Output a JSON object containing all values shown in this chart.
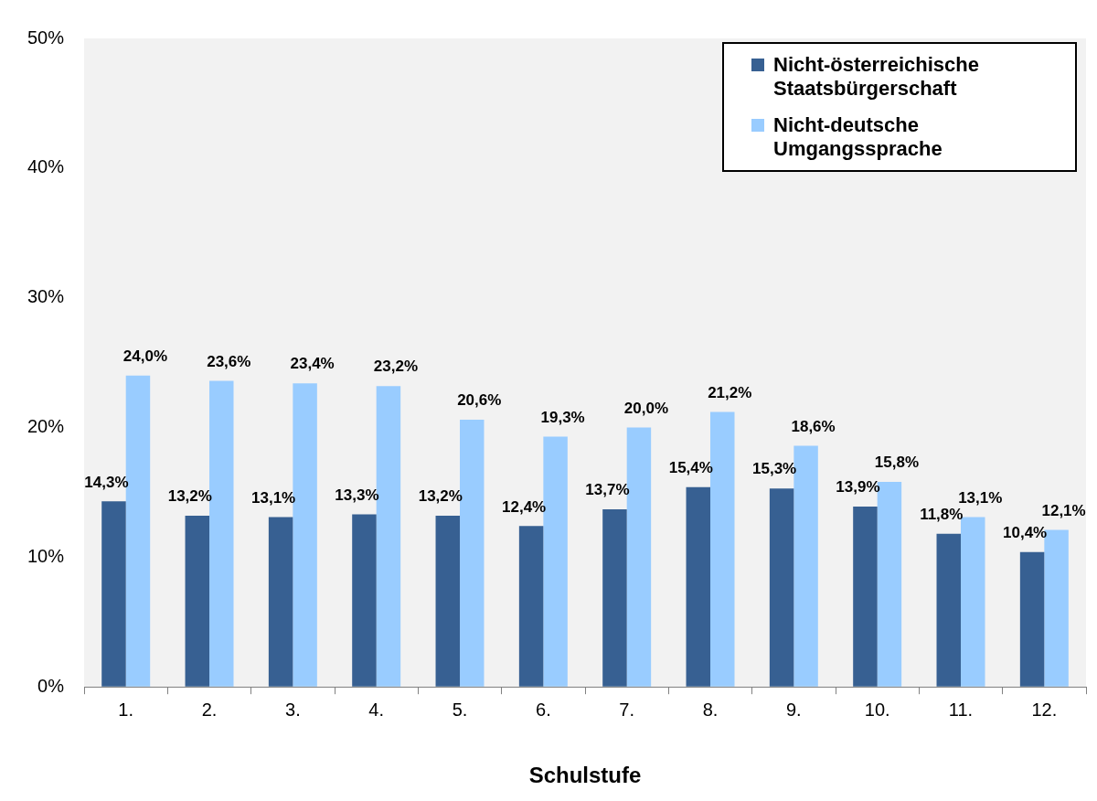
{
  "chart_data": {
    "type": "bar",
    "xlabel": "Schulstufe",
    "categories": [
      "1.",
      "2.",
      "3.",
      "4.",
      "5.",
      "6.",
      "7.",
      "8.",
      "9.",
      "10.",
      "11.",
      "12."
    ],
    "series": [
      {
        "name": "Nicht-österreichische Staatsbürgerschaft",
        "color": "#376092",
        "values": [
          14.3,
          13.2,
          13.1,
          13.3,
          13.2,
          12.4,
          13.7,
          15.4,
          15.3,
          13.9,
          11.8,
          10.4
        ],
        "value_labels": [
          "14,3%",
          "13,2%",
          "13,1%",
          "13,3%",
          "13,2%",
          "12,4%",
          "13,7%",
          "15,4%",
          "15,3%",
          "13,9%",
          "11,8%",
          "10,4%"
        ]
      },
      {
        "name": "Nicht-deutsche Umgangssprache",
        "color": "#99ccff",
        "values": [
          24.0,
          23.6,
          23.4,
          23.2,
          20.6,
          19.3,
          20.0,
          21.2,
          18.6,
          15.8,
          13.1,
          12.1
        ],
        "value_labels": [
          "24,0%",
          "23,6%",
          "23,4%",
          "23,2%",
          "20,6%",
          "19,3%",
          "20,0%",
          "21,2%",
          "18,6%",
          "15,8%",
          "13,1%",
          "12,1%"
        ]
      }
    ],
    "ylim": [
      0,
      50
    ],
    "yticks": [
      {
        "value": 0,
        "label": "0%"
      },
      {
        "value": 10,
        "label": "10%"
      },
      {
        "value": 20,
        "label": "20%"
      },
      {
        "value": 30,
        "label": "30%"
      },
      {
        "value": 40,
        "label": "40%"
      },
      {
        "value": 50,
        "label": "50%"
      }
    ],
    "grid": false,
    "legend": "top right"
  }
}
